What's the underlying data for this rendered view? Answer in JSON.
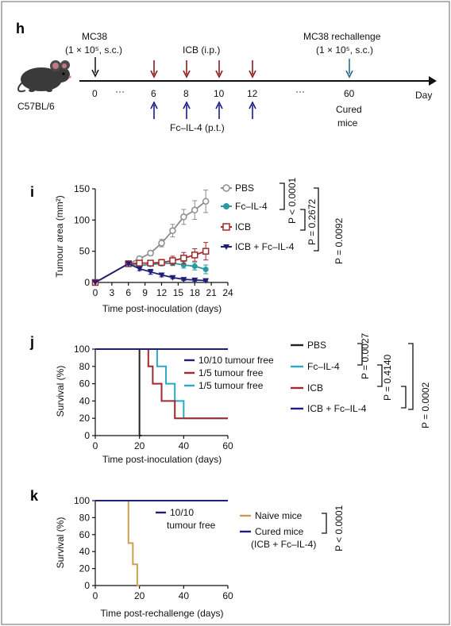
{
  "colors": {
    "pbs_gray": "#8c8c8c",
    "fc_teal": "#2a9aa0",
    "icb_red": "#a3282c",
    "combo_navy": "#1f1f7a",
    "survival_cyan": "#2aa8c8",
    "naive_gold": "#c8a050",
    "arrow_red": "#8b1a1a",
    "arrow_blue": "#1a1a8b",
    "rechallenge_arrow": "#2a6a8a"
  },
  "panel_h": {
    "letter": "h",
    "mouse_label": "C57BL/6",
    "mc38_label": "MC38",
    "mc38_dose": "(1 × 10⁵, s.c.)",
    "icb_label": "ICB (i.p.)",
    "fc_label": "Fc–IL-4 (p.t.)",
    "rechallenge_label": "MC38 rechallenge",
    "rechallenge_dose": "(1 × 10⁵, s.c.)",
    "timeline_ticks": [
      "0",
      "···",
      "6",
      "8",
      "10",
      "12",
      "···",
      "60"
    ],
    "cured_label_1": "Cured",
    "cured_label_2": "mice",
    "axis_label": "Day"
  },
  "panel_i": {
    "letter": "i",
    "ylabel": "Tumour area (mm²)",
    "xlabel": "Time post-inoculation (days)",
    "x_ticks": [
      "0",
      "3",
      "6",
      "9",
      "12",
      "15",
      "18",
      "21",
      "24"
    ],
    "y_ticks": [
      "0",
      "50",
      "100",
      "150"
    ],
    "legend": [
      "PBS",
      "Fc–IL-4",
      "ICB",
      "ICB + Fc–IL-4"
    ],
    "p_values": [
      "P < 0.0001",
      "P = 0.2672",
      "P = 0.0092"
    ]
  },
  "panel_j": {
    "letter": "j",
    "ylabel": "Survival (%)",
    "xlabel": "Time post-inoculation (days)",
    "x_ticks": [
      "0",
      "20",
      "40",
      "60"
    ],
    "y_ticks": [
      "0",
      "20",
      "40",
      "60",
      "80",
      "100"
    ],
    "annotations": [
      "10/10 tumour free",
      "1/5 tumour free",
      "1/5 tumour free"
    ],
    "legend": [
      "PBS",
      "Fc–IL-4",
      "ICB",
      "ICB + Fc–IL-4"
    ],
    "p_values": [
      "P = 0.0027",
      "P = 0.4140",
      "P = 0.0002"
    ]
  },
  "panel_k": {
    "letter": "k",
    "ylabel": "Survival (%)",
    "xlabel": "Time post-rechallenge (days)",
    "x_ticks": [
      "0",
      "20",
      "40",
      "60"
    ],
    "y_ticks": [
      "0",
      "20",
      "40",
      "60",
      "80",
      "100"
    ],
    "annotation_1": "10/10",
    "annotation_2": "tumour free",
    "legend": [
      "Naive mice",
      "Cured mice"
    ],
    "legend_sub": "(ICB + Fc–IL-4)",
    "p_value": "P < 0.0001"
  },
  "chart_data": [
    {
      "type": "line",
      "panel": "i",
      "xlabel": "Time post-inoculation (days)",
      "ylabel": "Tumour area (mm²)",
      "xlim": [
        0,
        24
      ],
      "ylim": [
        0,
        150
      ],
      "series": [
        {
          "name": "PBS",
          "x": [
            0,
            6,
            8,
            10,
            12,
            14,
            16,
            18,
            20
          ],
          "y": [
            0,
            30,
            38,
            47,
            63,
            83,
            105,
            116,
            130
          ],
          "err": [
            0,
            2,
            3,
            4,
            6,
            10,
            12,
            15,
            18
          ]
        },
        {
          "name": "Fc–IL-4",
          "x": [
            0,
            6,
            8,
            10,
            12,
            14,
            16,
            18,
            20
          ],
          "y": [
            0,
            30,
            27,
            29,
            30,
            31,
            28,
            26,
            21
          ],
          "err": [
            0,
            2,
            3,
            3,
            3,
            4,
            5,
            6,
            7
          ]
        },
        {
          "name": "ICB",
          "x": [
            0,
            6,
            8,
            10,
            12,
            14,
            16,
            18,
            20
          ],
          "y": [
            0,
            30,
            31,
            31,
            32,
            35,
            39,
            44,
            50
          ],
          "err": [
            0,
            2,
            3,
            4,
            5,
            7,
            9,
            10,
            14
          ]
        },
        {
          "name": "ICB + Fc–IL-4",
          "x": [
            0,
            6,
            8,
            10,
            12,
            14,
            16,
            18,
            20
          ],
          "y": [
            0,
            30,
            22,
            17,
            12,
            8,
            5,
            4,
            3
          ],
          "err": [
            0,
            2,
            3,
            4,
            3,
            2,
            2,
            2,
            1
          ]
        }
      ]
    },
    {
      "type": "line",
      "panel": "j",
      "step": true,
      "xlabel": "Time post-inoculation (days)",
      "ylabel": "Survival (%)",
      "xlim": [
        0,
        60
      ],
      "ylim": [
        0,
        100
      ],
      "series": [
        {
          "name": "PBS",
          "x": [
            0,
            20,
            20,
            21
          ],
          "y": [
            100,
            100,
            0,
            0
          ]
        },
        {
          "name": "Fc–IL-4",
          "x": [
            0,
            28,
            28,
            32,
            32,
            36,
            36,
            40,
            40,
            60
          ],
          "y": [
            100,
            100,
            80,
            80,
            60,
            60,
            40,
            40,
            20,
            20
          ]
        },
        {
          "name": "ICB",
          "x": [
            0,
            24,
            24,
            26,
            26,
            30,
            30,
            36,
            36,
            60
          ],
          "y": [
            100,
            100,
            80,
            80,
            60,
            60,
            40,
            40,
            20,
            20
          ]
        },
        {
          "name": "ICB + Fc–IL-4",
          "x": [
            0,
            60
          ],
          "y": [
            100,
            100
          ]
        }
      ]
    },
    {
      "type": "line",
      "panel": "k",
      "step": true,
      "xlabel": "Time post-rechallenge (days)",
      "ylabel": "Survival (%)",
      "xlim": [
        0,
        60
      ],
      "ylim": [
        0,
        100
      ],
      "series": [
        {
          "name": "Naive mice",
          "x": [
            0,
            15,
            15,
            17,
            17,
            19,
            19,
            20,
            20
          ],
          "y": [
            100,
            100,
            50,
            50,
            25,
            25,
            0,
            0,
            0
          ]
        },
        {
          "name": "Cured mice",
          "x": [
            0,
            60
          ],
          "y": [
            100,
            100
          ]
        }
      ]
    }
  ]
}
